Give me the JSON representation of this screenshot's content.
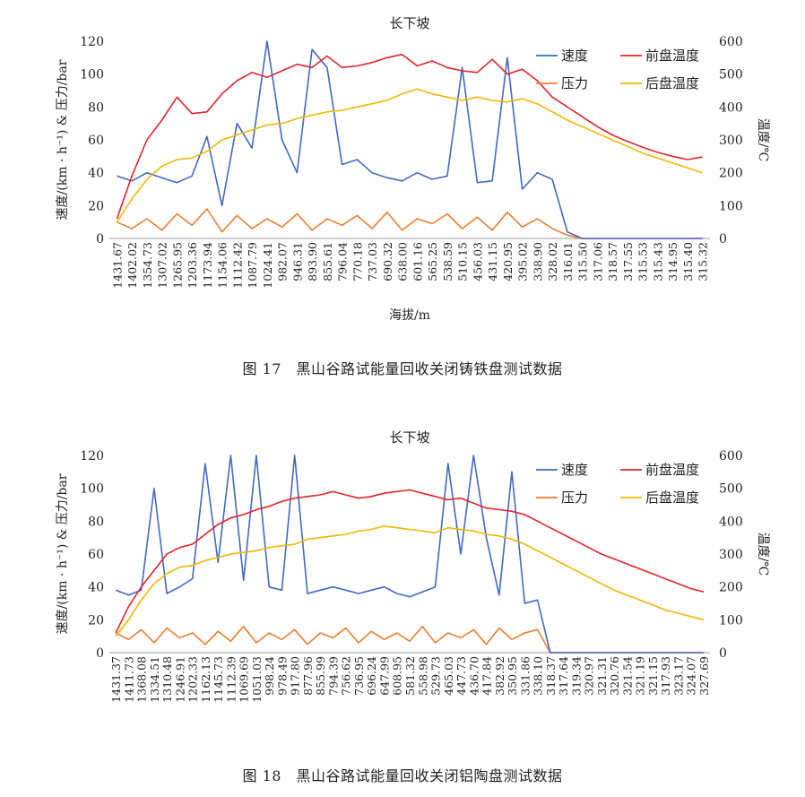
{
  "figures": [
    {
      "caption": "图 17　黑山谷路试能量回收关闭铸铁盘测试数据",
      "chart_data": {
        "type": "line",
        "title": "长下坡",
        "xlabel": "海拔/m",
        "ylabel_left": "速度/(km · h⁻¹) & 压力/bar",
        "ylabel_right": "温度/℃",
        "ylim_left": [
          0,
          120
        ],
        "ylim_right": [
          0,
          600
        ],
        "yticks_left": [
          0,
          20,
          40,
          60,
          80,
          100,
          120
        ],
        "yticks_right": [
          0,
          100,
          200,
          300,
          400,
          500,
          600
        ],
        "x_tick_labels": [
          "1431.67",
          "1402.02",
          "1354.73",
          "1307.02",
          "1265.95",
          "1203.36",
          "1173.94",
          "1154.06",
          "1112.42",
          "1087.79",
          "1024.41",
          "982.07",
          "946.31",
          "893.90",
          "855.61",
          "796.04",
          "770.18",
          "737.03",
          "690.32",
          "638.00",
          "601.16",
          "565.25",
          "538.59",
          "510.15",
          "456.03",
          "431.15",
          "420.95",
          "395.02",
          "338.90",
          "328.02",
          "316.01",
          "315.50",
          "317.06",
          "318.57",
          "317.55",
          "315.53",
          "315.43",
          "314.95",
          "315.40",
          "315.32"
        ],
        "grid": false,
        "legend_position": "top-right",
        "series": [
          {
            "name": "速度",
            "axis": "left",
            "color": "#4169c4",
            "values": [
              38,
              35,
              40,
              37,
              34,
              38,
              62,
              20,
              70,
              55,
              120,
              60,
              40,
              115,
              104,
              45,
              48,
              40,
              37,
              35,
              40,
              36,
              38,
              104,
              34,
              35,
              110,
              30,
              40,
              36,
              4,
              0,
              0,
              0,
              0,
              0,
              0,
              0,
              0,
              0
            ]
          },
          {
            "name": "前盘温度",
            "axis": "right",
            "color": "#e3242b",
            "values": [
              60,
              190,
              300,
              360,
              430,
              380,
              385,
              440,
              480,
              505,
              490,
              510,
              530,
              520,
              555,
              520,
              525,
              535,
              550,
              560,
              525,
              540,
              520,
              510,
              505,
              545,
              500,
              515,
              480,
              430,
              400,
              370,
              340,
              315,
              295,
              278,
              262,
              250,
              240,
              248
            ]
          },
          {
            "name": "压力",
            "axis": "left",
            "color": "#ef7d2d",
            "values": [
              10,
              6,
              12,
              5,
              15,
              8,
              18,
              4,
              14,
              6,
              12,
              7,
              15,
              5,
              12,
              8,
              14,
              6,
              16,
              5,
              12,
              9,
              15,
              6,
              13,
              5,
              16,
              7,
              12,
              6,
              2,
              0,
              0,
              0,
              0,
              0,
              0,
              0,
              0,
              0
            ]
          },
          {
            "name": "后盘温度",
            "axis": "right",
            "color": "#f2b705",
            "values": [
              50,
              120,
              180,
              220,
              240,
              245,
              265,
              300,
              315,
              330,
              345,
              350,
              365,
              375,
              385,
              390,
              400,
              410,
              420,
              440,
              455,
              440,
              430,
              420,
              430,
              420,
              415,
              425,
              410,
              385,
              360,
              340,
              320,
              300,
              280,
              260,
              245,
              230,
              215,
              200
            ]
          }
        ]
      }
    },
    {
      "caption": "图 18　黑山谷路试能量回收关闭铝陶盘测试数据",
      "chart_data": {
        "type": "line",
        "title": "长下坡",
        "xlabel": "",
        "ylabel_left": "速度/(km · h⁻¹) & 压力/bar",
        "ylabel_right": "温度/℃",
        "ylim_left": [
          0,
          120
        ],
        "ylim_right": [
          0,
          600
        ],
        "yticks_left": [
          0,
          20,
          40,
          60,
          80,
          100,
          120
        ],
        "yticks_right": [
          0,
          100,
          200,
          300,
          400,
          500,
          600
        ],
        "x_tick_labels": [
          "1431.37",
          "1411.73",
          "1368.08",
          "1334.51",
          "1310.48",
          "1246.91",
          "1202.33",
          "1162.13",
          "1145.73",
          "1112.39",
          "1069.69",
          "1051.03",
          "998.24",
          "978.49",
          "917.80",
          "877.96",
          "855.99",
          "794.39",
          "756.62",
          "736.95",
          "696.24",
          "647.99",
          "608.95",
          "581.32",
          "558.98",
          "529.73",
          "465.03",
          "447.73",
          "436.70",
          "417.84",
          "382.92",
          "350.95",
          "331.86",
          "338.10",
          "318.37",
          "317.64",
          "319.34",
          "320.97",
          "321.31",
          "320.76",
          "321.54",
          "321.19",
          "321.15",
          "317.93",
          "323.17",
          "324.07",
          "327.69"
        ],
        "grid": false,
        "legend_position": "top-right",
        "series": [
          {
            "name": "速度",
            "axis": "left",
            "color": "#4169c4",
            "values": [
              38,
              35,
              38,
              100,
              36,
              40,
              45,
              115,
              55,
              120,
              44,
              120,
              40,
              38,
              120,
              36,
              38,
              40,
              38,
              36,
              38,
              40,
              36,
              34,
              37,
              40,
              115,
              60,
              120,
              70,
              35,
              110,
              30,
              32,
              0,
              0,
              0,
              0,
              0,
              0,
              0,
              0,
              0,
              0,
              0,
              0,
              0
            ]
          },
          {
            "name": "前盘温度",
            "axis": "right",
            "color": "#e3242b",
            "values": [
              60,
              140,
              200,
              250,
              300,
              320,
              330,
              360,
              390,
              410,
              420,
              435,
              445,
              460,
              470,
              475,
              480,
              490,
              480,
              470,
              475,
              485,
              490,
              495,
              485,
              475,
              465,
              470,
              455,
              440,
              435,
              430,
              420,
              400,
              380,
              360,
              340,
              320,
              300,
              285,
              270,
              255,
              240,
              225,
              210,
              195,
              185
            ]
          },
          {
            "name": "压力",
            "axis": "left",
            "color": "#ef7d2d",
            "values": [
              12,
              8,
              14,
              6,
              15,
              9,
              12,
              5,
              13,
              7,
              16,
              6,
              12,
              8,
              14,
              5,
              12,
              9,
              15,
              6,
              13,
              8,
              12,
              7,
              16,
              6,
              12,
              9,
              14,
              5,
              15,
              8,
              12,
              14,
              0,
              0,
              0,
              0,
              0,
              0,
              0,
              0,
              0,
              0,
              0,
              0,
              0
            ]
          },
          {
            "name": "后盘温度",
            "axis": "right",
            "color": "#f2b705",
            "values": [
              50,
              100,
              160,
              210,
              240,
              260,
              265,
              280,
              290,
              300,
              305,
              310,
              320,
              325,
              330,
              345,
              350,
              355,
              360,
              370,
              375,
              385,
              380,
              375,
              370,
              365,
              380,
              375,
              370,
              360,
              355,
              345,
              330,
              310,
              290,
              270,
              250,
              230,
              210,
              190,
              175,
              160,
              145,
              130,
              120,
              110,
              100
            ]
          }
        ]
      }
    }
  ]
}
